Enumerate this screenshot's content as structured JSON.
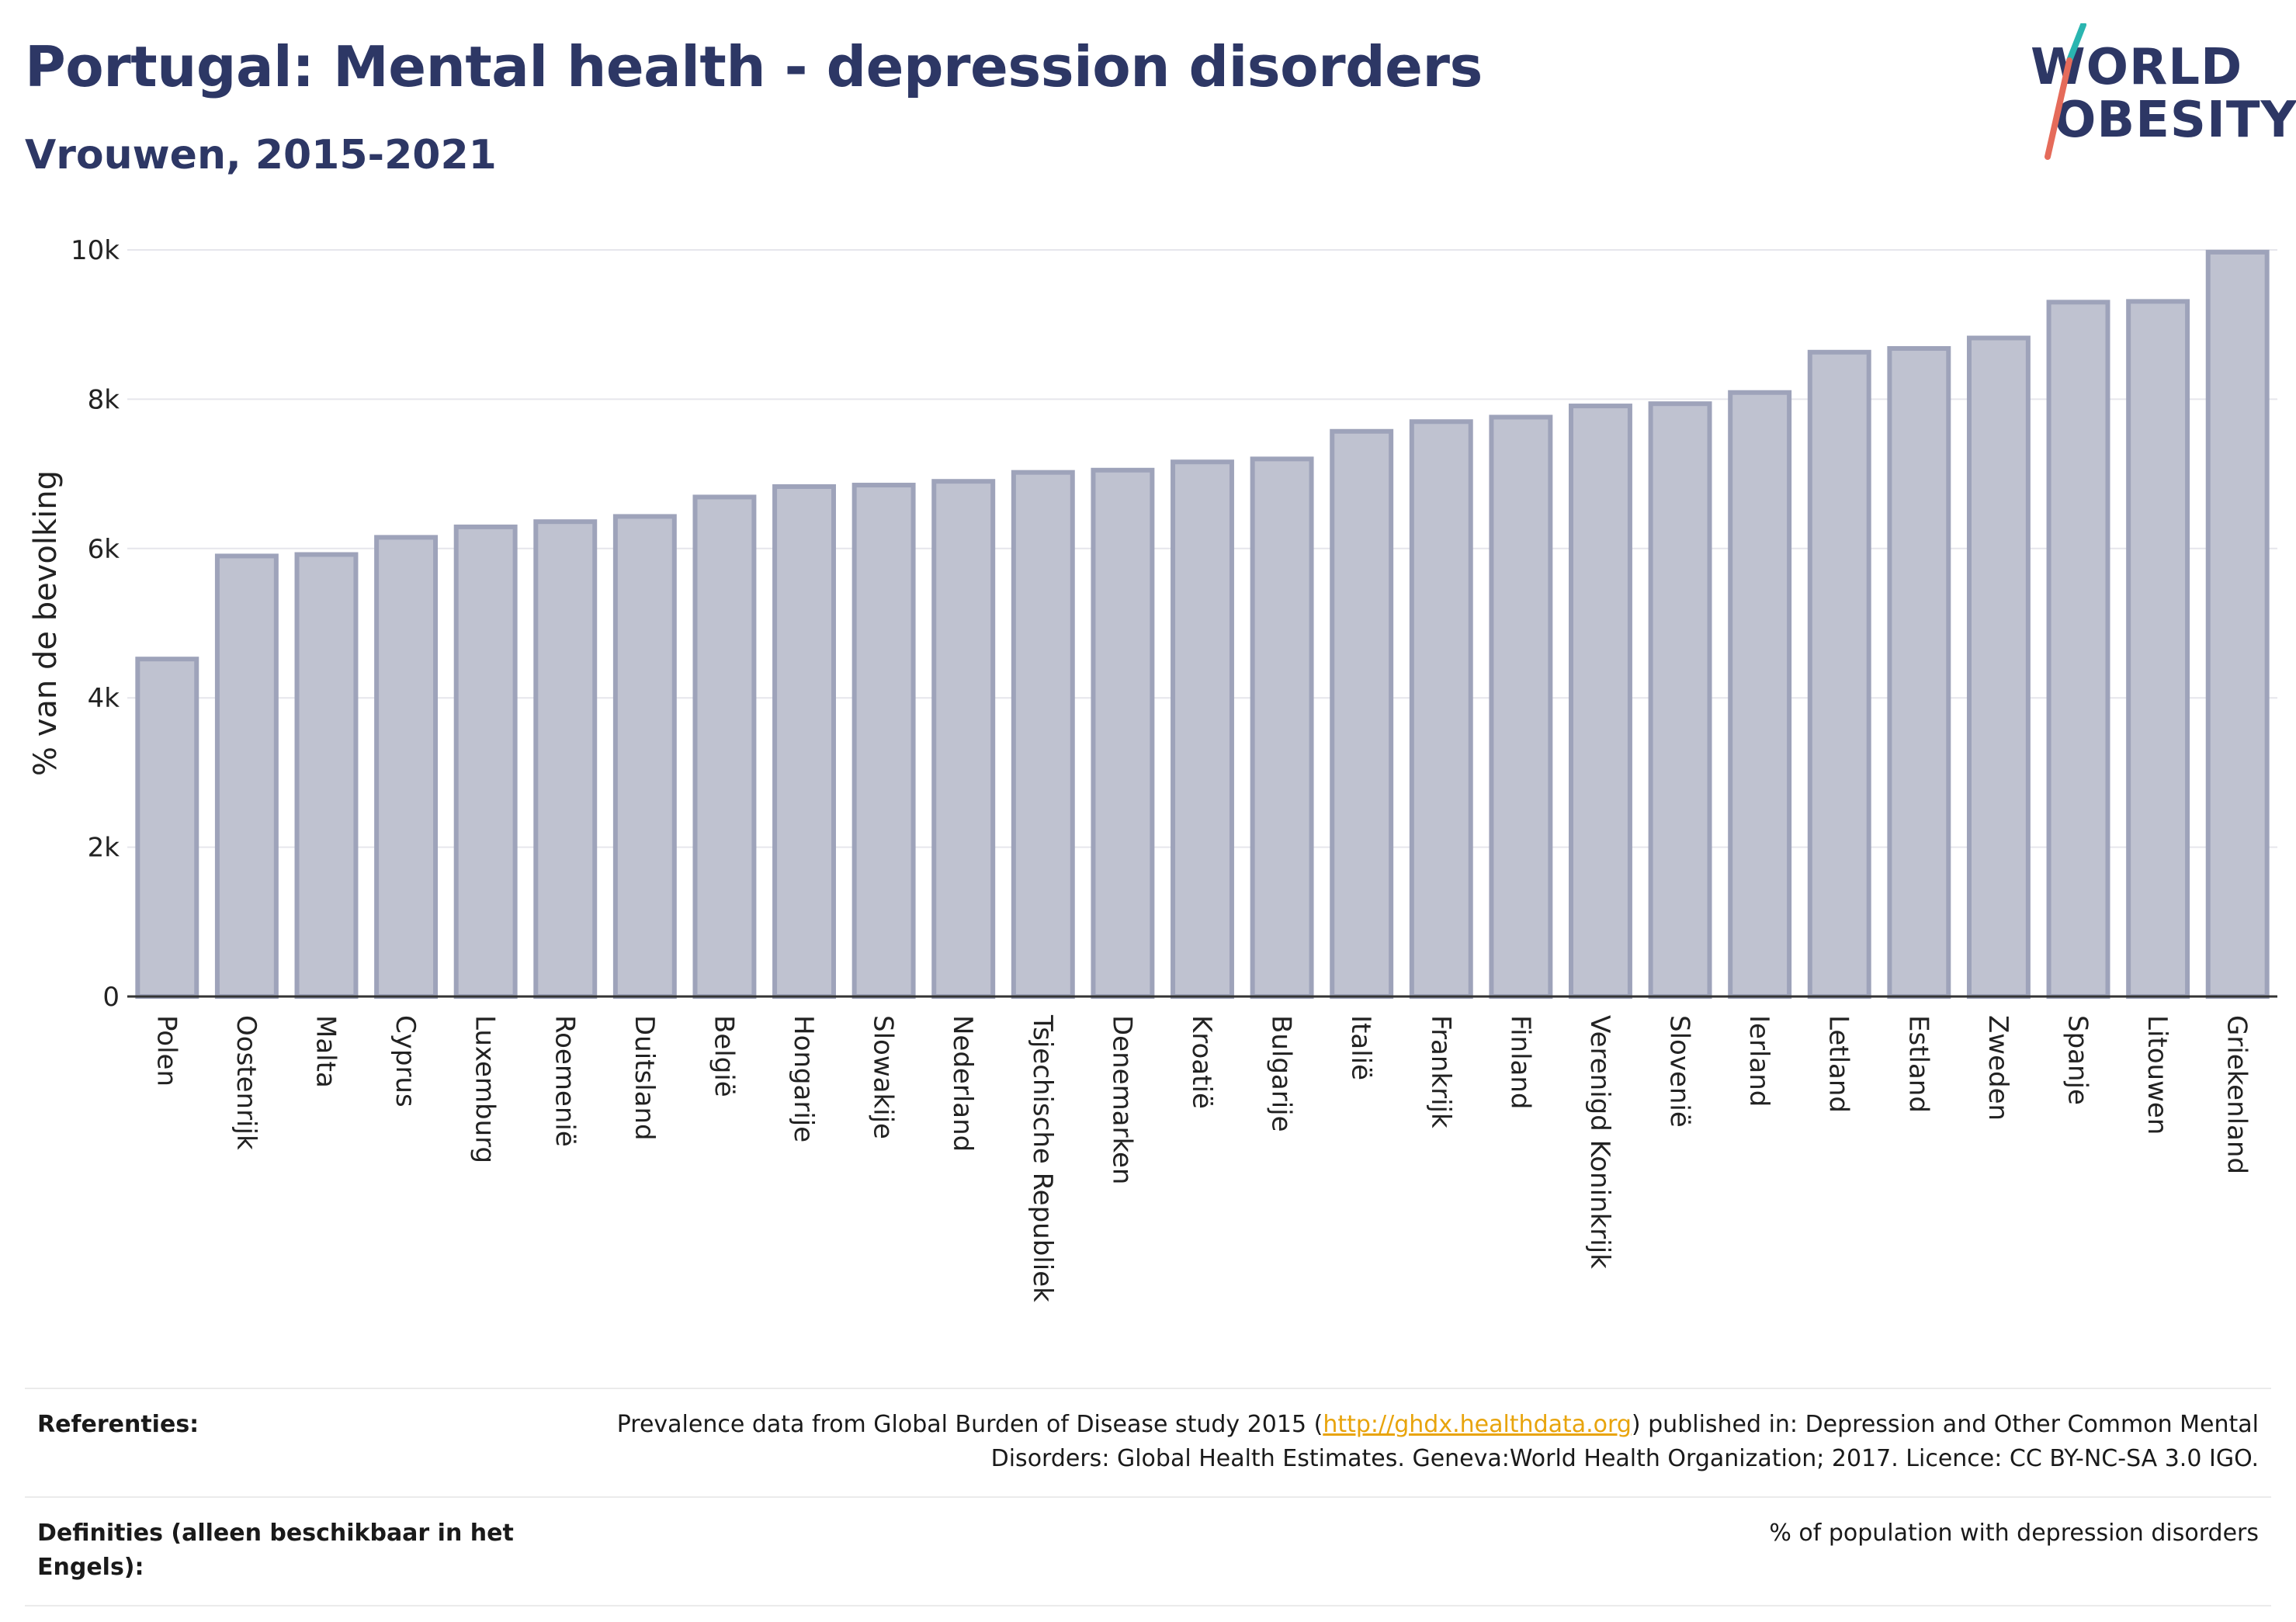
{
  "header": {
    "title": "Portugal: Mental health - depression disorders",
    "subtitle": "Vrouwen, 2015-2021"
  },
  "logo": {
    "line1": "WORLD",
    "line2": "OBESITY",
    "accent_colors": [
      "#2ab5b0",
      "#e56b5a"
    ]
  },
  "chart_data": {
    "type": "bar",
    "categories": [
      "Polen",
      "Oostenrijk",
      "Malta",
      "Cyprus",
      "Luxemburg",
      "Roemenië",
      "Duitsland",
      "België",
      "Hongarije",
      "Slowakije",
      "Nederland",
      "Tsjechische Republiek",
      "Denemarken",
      "Kroatië",
      "Bulgarije",
      "Italië",
      "Frankrijk",
      "Finland",
      "Verenigd Koninkrijk",
      "Slovenië",
      "Ierland",
      "Letland",
      "Estland",
      "Zweden",
      "Spanje",
      "Litouwen",
      "Griekenland"
    ],
    "values": [
      4520,
      5900,
      5920,
      6150,
      6290,
      6360,
      6430,
      6690,
      6830,
      6850,
      6900,
      7020,
      7050,
      7160,
      7200,
      7570,
      7700,
      7760,
      7910,
      7940,
      8090,
      8630,
      8680,
      8820,
      9300,
      9310,
      9970
    ],
    "ylabel": "% van de bevolking",
    "xlabel": "",
    "ylim": [
      0,
      10000
    ],
    "yticks": [
      0,
      2000,
      4000,
      6000,
      8000,
      10000
    ],
    "ytick_labels": [
      "0",
      "2k",
      "4k",
      "6k",
      "8k",
      "10k"
    ],
    "grid": true,
    "bar_fill": "#bfc2d0",
    "bar_stroke": "#9ea3ba"
  },
  "references": {
    "label": "Referenties:",
    "text_before": "Prevalence data from Global Burden of Disease study 2015 (",
    "link": "http://ghdx.healthdata.org",
    "text_after": ") published in: Depression and Other Common Mental Disorders: Global Health Estimates. Geneva:World Health Organization; 2017. Licence: CC BY-NC-SA 3.0 IGO."
  },
  "definitions": {
    "label": "Definities (alleen beschikbaar in het Engels):",
    "text": "% of population with depression disorders"
  }
}
